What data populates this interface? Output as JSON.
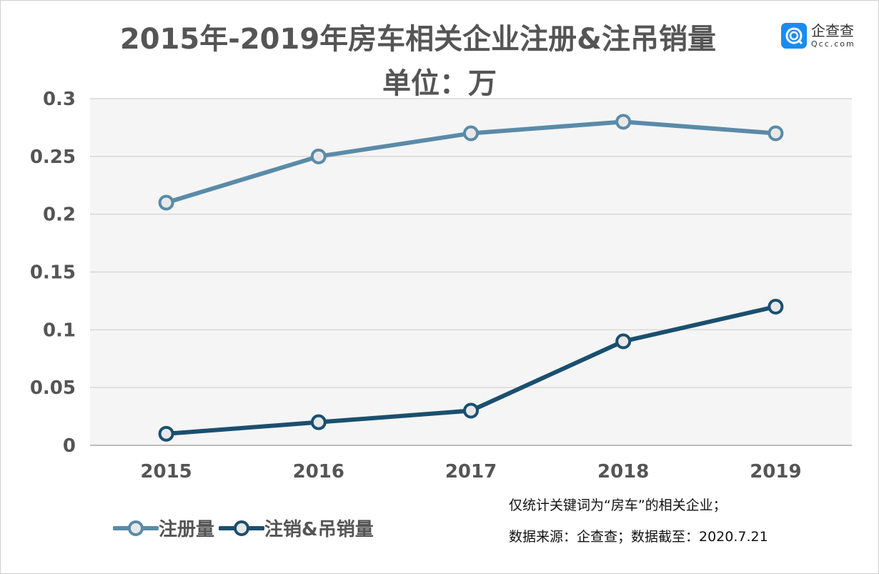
{
  "chart_data": {
    "type": "line",
    "title": "2015年-2019年房车相关企业注册&注吊销量",
    "subtitle": "单位：万",
    "categories": [
      "2015",
      "2016",
      "2017",
      "2018",
      "2019"
    ],
    "series": [
      {
        "name": "注册量",
        "values": [
          0.21,
          0.25,
          0.27,
          0.28,
          0.27
        ],
        "color": "#5a8ba8"
      },
      {
        "name": "注销&吊销量",
        "values": [
          0.01,
          0.02,
          0.03,
          0.09,
          0.12
        ],
        "color": "#1a4f6e"
      }
    ],
    "ylim": [
      0,
      0.3
    ],
    "yticks": [
      "0",
      "0.05",
      "0.1",
      "0.15",
      "0.2",
      "0.25",
      "0.3"
    ],
    "grid": true,
    "legend": "bottom-left",
    "plot_background": "#f5f5f5",
    "notes": [
      "仅统计关键词为“房车”的相关企业；",
      "数据来源：企查查；数据截至：2020.7.21"
    ]
  },
  "logo": {
    "cn": "企查查",
    "en": "Qcc.com",
    "color": "#1a8cf0"
  }
}
